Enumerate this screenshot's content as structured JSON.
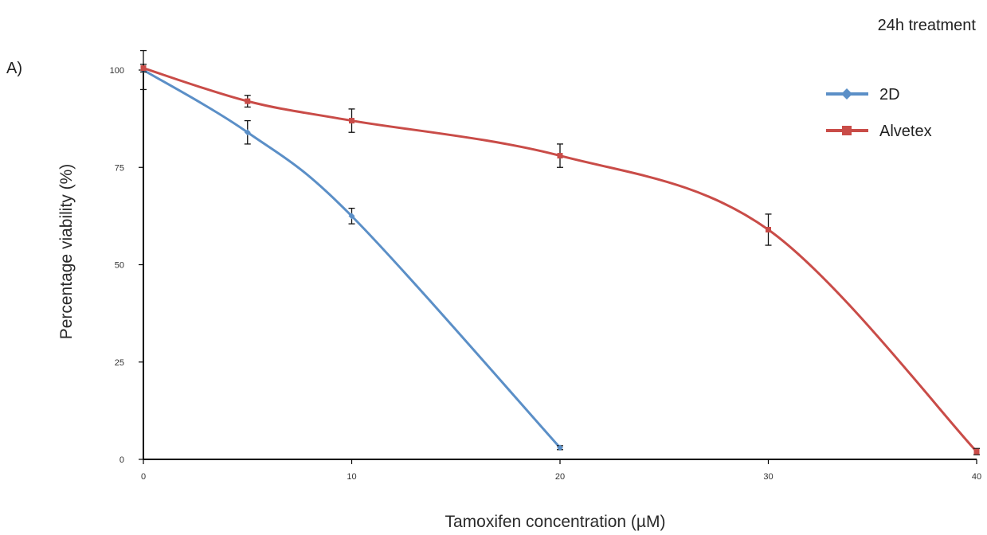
{
  "panel_label": "A)",
  "chart_data": {
    "type": "line",
    "title": "24h treatment",
    "xlabel": "Tamoxifen concentration (µM)",
    "ylabel": "Percentage viability (%)",
    "xlim": [
      0,
      40
    ],
    "ylim": [
      0,
      100
    ],
    "xticks": [
      0,
      10,
      20,
      30,
      40
    ],
    "yticks": [
      0,
      25,
      50,
      75,
      100
    ],
    "legend_position": "top-right",
    "series": [
      {
        "name": "2D",
        "color": "#5b8fc7",
        "marker": "diamond",
        "x": [
          0,
          5,
          10,
          20
        ],
        "y": [
          100,
          84,
          62.5,
          3
        ],
        "err": [
          5,
          3,
          2,
          0.5
        ]
      },
      {
        "name": "Alvetex",
        "color": "#c94c48",
        "marker": "square",
        "x": [
          0,
          5,
          10,
          20,
          30,
          40
        ],
        "y": [
          100.5,
          92,
          87,
          78,
          59,
          2
        ],
        "err": [
          1,
          1.5,
          3,
          3,
          4,
          0.8
        ]
      }
    ]
  }
}
